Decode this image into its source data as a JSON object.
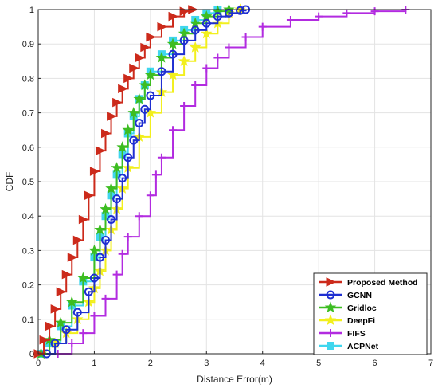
{
  "chart_data": {
    "type": "line",
    "title": "",
    "xlabel": "Distance Error(m)",
    "ylabel": "CDF",
    "xlim": [
      0,
      7
    ],
    "ylim": [
      0,
      1
    ],
    "xticks": [
      "0",
      "1",
      "2",
      "3",
      "4",
      "5",
      "6",
      "7"
    ],
    "yticks": [
      "0",
      "0.1",
      "0.2",
      "0.3",
      "0.4",
      "0.5",
      "0.6",
      "0.7",
      "0.8",
      "0.9",
      "1"
    ],
    "grid": true,
    "legend_position": "bottom-right",
    "series": [
      {
        "name": "Proposed Method",
        "color": "#cc2a1b",
        "marker": "triangle-right",
        "x": [
          0.0,
          0.1,
          0.2,
          0.3,
          0.4,
          0.5,
          0.6,
          0.7,
          0.8,
          0.9,
          1.0,
          1.1,
          1.2,
          1.3,
          1.4,
          1.5,
          1.6,
          1.7,
          1.8,
          1.9,
          2.0,
          2.2,
          2.4,
          2.6,
          2.75
        ],
        "y": [
          0.0,
          0.04,
          0.08,
          0.13,
          0.18,
          0.23,
          0.28,
          0.33,
          0.39,
          0.46,
          0.53,
          0.59,
          0.64,
          0.69,
          0.73,
          0.77,
          0.8,
          0.83,
          0.86,
          0.89,
          0.92,
          0.95,
          0.98,
          0.995,
          1.0
        ]
      },
      {
        "name": "GCNN",
        "color": "#1f2fd1",
        "marker": "circle",
        "x": [
          0.15,
          0.3,
          0.5,
          0.7,
          0.9,
          1.0,
          1.1,
          1.2,
          1.3,
          1.4,
          1.5,
          1.6,
          1.7,
          1.8,
          1.9,
          2.0,
          2.2,
          2.4,
          2.6,
          2.8,
          3.0,
          3.2,
          3.4,
          3.6,
          3.7
        ],
        "y": [
          0.0,
          0.03,
          0.07,
          0.12,
          0.18,
          0.22,
          0.28,
          0.33,
          0.39,
          0.45,
          0.51,
          0.57,
          0.62,
          0.67,
          0.71,
          0.75,
          0.82,
          0.87,
          0.91,
          0.94,
          0.96,
          0.98,
          0.99,
          0.997,
          1.0
        ]
      },
      {
        "name": "Gridloc",
        "color": "#3dbd21",
        "marker": "star",
        "x": [
          0.05,
          0.2,
          0.4,
          0.6,
          0.8,
          1.0,
          1.1,
          1.2,
          1.3,
          1.4,
          1.5,
          1.6,
          1.7,
          1.8,
          1.9,
          2.0,
          2.2,
          2.4,
          2.6,
          2.8,
          3.0,
          3.2,
          3.4
        ],
        "y": [
          0.0,
          0.04,
          0.09,
          0.15,
          0.22,
          0.3,
          0.36,
          0.42,
          0.48,
          0.54,
          0.6,
          0.65,
          0.7,
          0.74,
          0.78,
          0.81,
          0.86,
          0.9,
          0.93,
          0.96,
          0.98,
          0.995,
          1.0
        ]
      },
      {
        "name": "DeepFi",
        "color": "#f2ef1d",
        "marker": "star",
        "x": [
          0.05,
          0.3,
          0.5,
          0.7,
          0.9,
          1.0,
          1.1,
          1.2,
          1.3,
          1.4,
          1.5,
          1.6,
          1.8,
          2.0,
          2.2,
          2.4,
          2.6,
          2.8,
          3.0,
          3.2,
          3.4,
          3.6
        ],
        "y": [
          0.0,
          0.03,
          0.06,
          0.1,
          0.15,
          0.19,
          0.24,
          0.3,
          0.36,
          0.42,
          0.48,
          0.54,
          0.63,
          0.7,
          0.76,
          0.81,
          0.85,
          0.89,
          0.93,
          0.96,
          0.99,
          1.0
        ]
      },
      {
        "name": "FIFS",
        "color": "#b22be0",
        "marker": "plus",
        "x": [
          0.35,
          0.6,
          0.8,
          1.0,
          1.2,
          1.4,
          1.5,
          1.6,
          1.8,
          2.0,
          2.1,
          2.2,
          2.4,
          2.6,
          2.8,
          3.0,
          3.2,
          3.4,
          3.7,
          4.0,
          4.5,
          5.0,
          5.5,
          6.0,
          6.55
        ],
        "y": [
          0.0,
          0.03,
          0.06,
          0.11,
          0.16,
          0.23,
          0.29,
          0.34,
          0.4,
          0.46,
          0.52,
          0.57,
          0.65,
          0.72,
          0.78,
          0.83,
          0.86,
          0.89,
          0.92,
          0.95,
          0.97,
          0.98,
          0.99,
          0.995,
          1.0
        ]
      },
      {
        "name": "ACPNet",
        "color": "#3fd6ee",
        "marker": "square",
        "x": [
          0.05,
          0.2,
          0.4,
          0.6,
          0.8,
          1.0,
          1.1,
          1.2,
          1.3,
          1.4,
          1.5,
          1.6,
          1.7,
          1.8,
          1.9,
          2.0,
          2.2,
          2.4,
          2.6,
          2.8,
          3.0,
          3.2
        ],
        "y": [
          0.0,
          0.03,
          0.08,
          0.14,
          0.21,
          0.28,
          0.34,
          0.4,
          0.46,
          0.52,
          0.58,
          0.64,
          0.69,
          0.74,
          0.78,
          0.82,
          0.87,
          0.91,
          0.94,
          0.97,
          0.99,
          1.0
        ]
      }
    ]
  }
}
